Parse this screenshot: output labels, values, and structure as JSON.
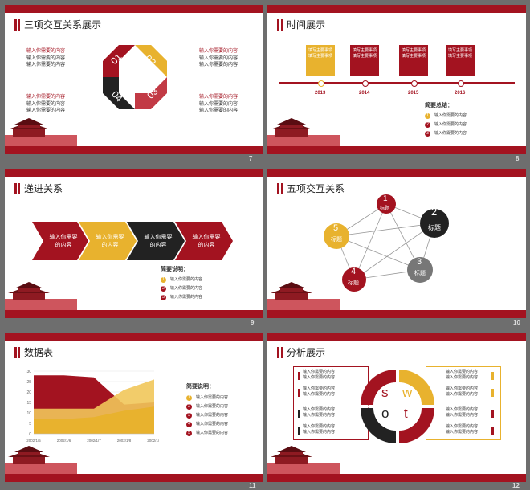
{
  "colors": {
    "red": "#a31320",
    "yellow": "#e8b22e",
    "black": "#222222",
    "gray": "#777777",
    "frame": "#6e6e6e"
  },
  "slides": [
    {
      "num": "7",
      "title": "三项交互关系展示",
      "blocks": [
        {
          "head": "输入你需要的内容",
          "l1": "输入你需要的内容",
          "l2": "输入你需要的内容"
        },
        {
          "head": "输入你需要的内容",
          "l1": "输入你需要的内容",
          "l2": "输入你需要的内容"
        },
        {
          "head": "输入你需要的内容",
          "l1": "输入你需要的内容",
          "l2": "输入你需要的内容"
        },
        {
          "head": "输入你需要的内容",
          "l1": "输入你需要的内容",
          "l2": "输入你需要的内容"
        }
      ],
      "ring": [
        "01",
        "02",
        "03",
        "04"
      ]
    },
    {
      "num": "8",
      "title": "时间展示",
      "boxes": [
        {
          "text": "填写主要事项填写主要事项",
          "year": "2013"
        },
        {
          "text": "填写主要事项填写主要事项",
          "year": "2014"
        },
        {
          "text": "填写主要事项填写主要事项",
          "year": "2015"
        },
        {
          "text": "填写主要事项填写主要事项",
          "year": "2016"
        }
      ],
      "summary_title": "简要总结：",
      "items": [
        "输入你需要的内容",
        "输入你需要的内容",
        "输入你需要的内容"
      ],
      "item_nums": [
        "1",
        "2",
        "3"
      ]
    },
    {
      "num": "9",
      "title": "递进关系",
      "arrows": [
        "输入你需要的内容",
        "输入你需要的内容",
        "输入你需要的内容",
        "输入你需要的内容"
      ],
      "note_title": "简要说明：",
      "items": [
        "输入你需要的内容",
        "输入你需要的内容",
        "输入你需要的内容"
      ],
      "item_nums": [
        "1",
        "2",
        "3"
      ]
    },
    {
      "num": "10",
      "title": "五项交互关系",
      "nodes": [
        {
          "n": "1",
          "label": "标题"
        },
        {
          "n": "2",
          "label": "标题"
        },
        {
          "n": "3",
          "label": "标题"
        },
        {
          "n": "4",
          "label": "标题"
        },
        {
          "n": "5",
          "label": "标题"
        }
      ]
    },
    {
      "num": "11",
      "title": "数据表",
      "note_title": "简要说明：",
      "items": [
        "输入你需要的内容",
        "输入你需要的内容",
        "输入你需要的内容",
        "输入你需要的内容",
        "输入你需要的内容"
      ],
      "item_nums": [
        "1",
        "2",
        "3",
        "4",
        "5"
      ],
      "yticks": [
        "30",
        "25",
        "20",
        "15",
        "10",
        "5",
        "0"
      ],
      "xticks": [
        "2002/1/5",
        "2002/1/6",
        "2002/1/7",
        "2002/1/8",
        "2002/1/9"
      ]
    },
    {
      "num": "12",
      "title": "分析展示",
      "left": [
        {
          "l1": "输入你需要的内容",
          "l2": "输入你需要的内容"
        },
        {
          "l1": "输入你需要的内容",
          "l2": "输入你需要的内容"
        },
        {
          "l1": "输入你需要的内容",
          "l2": "输入你需要的内容"
        },
        {
          "l1": "输入你需要的内容",
          "l2": "输入你需要的内容"
        }
      ],
      "right": [
        {
          "l1": "输入你需要的内容",
          "l2": "输入你需要的内容"
        },
        {
          "l1": "输入你需要的内容",
          "l2": "输入你需要的内容"
        },
        {
          "l1": "输入你需要的内容",
          "l2": "输入你需要的内容"
        },
        {
          "l1": "输入你需要的内容",
          "l2": "输入你需要的内容"
        }
      ],
      "swot": [
        "s",
        "w",
        "o",
        "t"
      ]
    }
  ],
  "chart_data": {
    "type": "area",
    "x": [
      "2002/1/5",
      "2002/1/6",
      "2002/1/7",
      "2002/1/8",
      "2002/1/9"
    ],
    "ylim": [
      0,
      30
    ],
    "series": [
      {
        "values": [
          28,
          28,
          27,
          14,
          15
        ]
      },
      {
        "values": [
          12,
          12,
          12,
          21,
          26
        ]
      },
      {
        "values": [
          7,
          7,
          8,
          11,
          13
        ]
      }
    ],
    "grid": true
  }
}
